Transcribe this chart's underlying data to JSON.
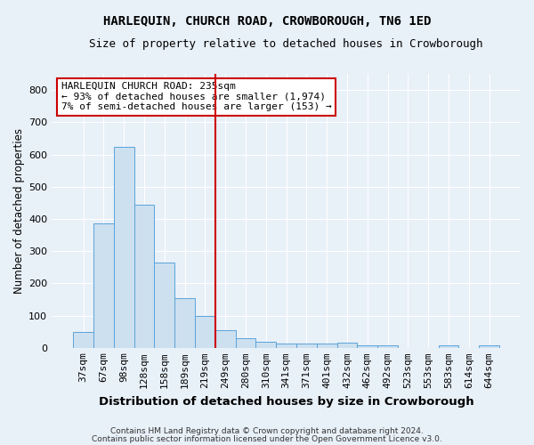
{
  "title": "HARLEQUIN, CHURCH ROAD, CROWBOROUGH, TN6 1ED",
  "subtitle": "Size of property relative to detached houses in Crowborough",
  "xlabel": "Distribution of detached houses by size in Crowborough",
  "ylabel": "Number of detached properties",
  "footnote1": "Contains HM Land Registry data © Crown copyright and database right 2024.",
  "footnote2": "Contains public sector information licensed under the Open Government Licence v3.0.",
  "categories": [
    "37sqm",
    "67sqm",
    "98sqm",
    "128sqm",
    "158sqm",
    "189sqm",
    "219sqm",
    "249sqm",
    "280sqm",
    "310sqm",
    "341sqm",
    "371sqm",
    "401sqm",
    "432sqm",
    "462sqm",
    "492sqm",
    "523sqm",
    "553sqm",
    "583sqm",
    "614sqm",
    "644sqm"
  ],
  "values": [
    50,
    385,
    625,
    445,
    265,
    155,
    98,
    55,
    30,
    20,
    13,
    12,
    12,
    15,
    8,
    8,
    0,
    0,
    8,
    0,
    8
  ],
  "bar_color": "#cce0f0",
  "bar_edge_color": "#5ba3d9",
  "vline_index": 7,
  "vline_color": "#cc0000",
  "annotation_title": "HARLEQUIN CHURCH ROAD: 235sqm",
  "annotation_line1": "← 93% of detached houses are smaller (1,974)",
  "annotation_line2": "7% of semi-detached houses are larger (153) →",
  "ylim": [
    0,
    850
  ],
  "yticks": [
    0,
    100,
    200,
    300,
    400,
    500,
    600,
    700,
    800
  ],
  "bg_color": "#e8f0f8",
  "title_fontsize": 10,
  "subtitle_fontsize": 9,
  "ylabel_fontsize": 8.5,
  "xlabel_fontsize": 9.5,
  "tick_fontsize": 8,
  "annot_fontsize": 8,
  "footnote_fontsize": 6.5
}
